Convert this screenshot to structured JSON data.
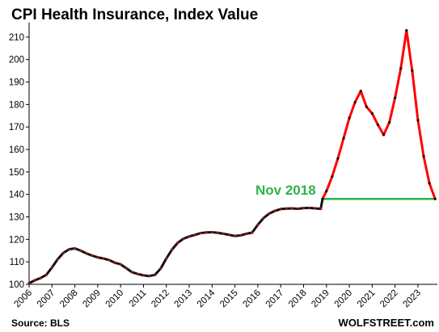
{
  "chart_data": {
    "type": "line",
    "title": "CPI Health Insurance, Index Value",
    "xlabel": "",
    "ylabel": "",
    "ylim": [
      100,
      215
    ],
    "yticks": [
      "100",
      "110",
      "120",
      "130",
      "140",
      "150",
      "160",
      "170",
      "180",
      "190",
      "200",
      "210"
    ],
    "xticks": [
      "2006",
      "2007",
      "2008",
      "2009",
      "2010",
      "2011",
      "2012",
      "2013",
      "2014",
      "2015",
      "2016",
      "2017",
      "2018",
      "2019",
      "2020",
      "2021",
      "2022",
      "2023"
    ],
    "grid": false,
    "series": [
      {
        "color": "#111111",
        "marker_color": "#8a1a1a",
        "x": [
          2006.0,
          2006.25,
          2006.5,
          2006.75,
          2007.0,
          2007.25,
          2007.5,
          2007.75,
          2008.0,
          2008.25,
          2008.5,
          2008.75,
          2009.0,
          2009.25,
          2009.5,
          2009.75,
          2010.0,
          2010.25,
          2010.5,
          2010.75,
          2011.0,
          2011.25,
          2011.5,
          2011.75,
          2012.0,
          2012.25,
          2012.5,
          2012.75,
          2013.0,
          2013.25,
          2013.5,
          2013.75,
          2014.0,
          2014.25,
          2014.5,
          2014.75,
          2015.0,
          2015.25,
          2015.5,
          2015.75,
          2016.0,
          2016.25,
          2016.5,
          2016.75,
          2017.0,
          2017.25,
          2017.5,
          2017.75,
          2018.0,
          2018.25,
          2018.5,
          2018.75,
          2018.83
        ],
        "y": [
          100.5,
          101.8,
          102.8,
          104.2,
          107.5,
          111.2,
          114.0,
          115.6,
          116.0,
          115.0,
          113.8,
          112.8,
          112.0,
          111.5,
          110.8,
          109.6,
          108.9,
          107.2,
          105.4,
          104.6,
          104.0,
          103.7,
          104.2,
          107.0,
          111.5,
          115.5,
          118.5,
          120.3,
          121.3,
          122.0,
          122.8,
          123.1,
          123.2,
          122.9,
          122.5,
          122.0,
          121.5,
          121.8,
          122.5,
          123.0,
          126.5,
          129.5,
          131.5,
          132.7,
          133.5,
          133.7,
          133.8,
          133.6,
          133.9,
          134.0,
          133.8,
          133.6,
          138.0
        ]
      },
      {
        "color": "#ff0000",
        "marker_color": "#111111",
        "x": [
          2018.83,
          2019.0,
          2019.25,
          2019.5,
          2019.75,
          2020.0,
          2020.25,
          2020.5,
          2020.75,
          2021.0,
          2021.25,
          2021.5,
          2021.75,
          2022.0,
          2022.25,
          2022.5,
          2022.75,
          2023.0,
          2023.25,
          2023.5,
          2023.75
        ],
        "y": [
          138.0,
          141.5,
          148.0,
          156.0,
          165.0,
          174.0,
          181.0,
          186.0,
          179.0,
          176.0,
          171.0,
          166.5,
          172.0,
          183.0,
          196.0,
          213.0,
          195.0,
          173.0,
          157.0,
          145.0,
          138.0
        ]
      }
    ],
    "reference_line": {
      "y": 138.0,
      "x_start": 2018.83,
      "x_end": 2023.75,
      "label": "Nov 2018",
      "color": "#2db34a"
    },
    "source": "Source: BLS",
    "brand": "WOLFSTREET.com"
  }
}
